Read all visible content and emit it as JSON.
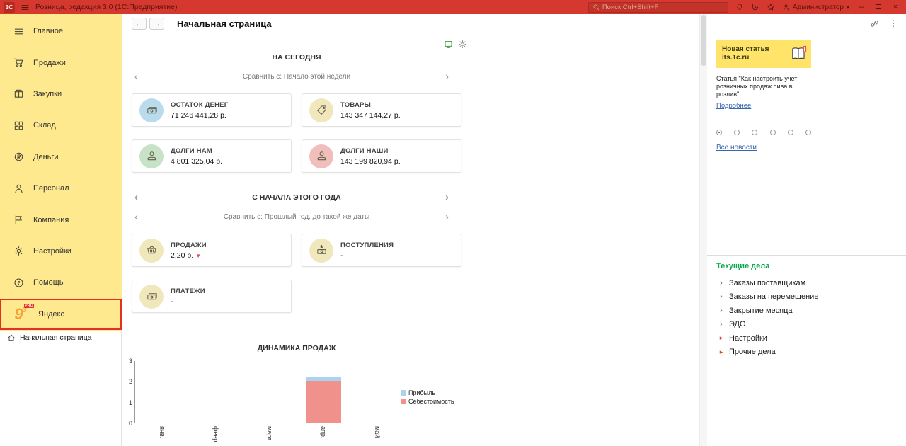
{
  "titlebar": {
    "logo": "1С",
    "title": "Розница, редакция 3.0  (1С:Предприятие)",
    "search_placeholder": "Поиск Ctrl+Shift+F",
    "user": "Администратор"
  },
  "sidebar": {
    "items": [
      {
        "id": "main",
        "label": "Главное",
        "icon": "menu"
      },
      {
        "id": "sales",
        "label": "Продажи",
        "icon": "cart"
      },
      {
        "id": "purchases",
        "label": "Закупки",
        "icon": "box"
      },
      {
        "id": "warehouse",
        "label": "Склад",
        "icon": "grid"
      },
      {
        "id": "money",
        "label": "Деньги",
        "icon": "coin"
      },
      {
        "id": "staff",
        "label": "Персонал",
        "icon": "person"
      },
      {
        "id": "company",
        "label": "Компания",
        "icon": "flag"
      },
      {
        "id": "settings",
        "label": "Настройки",
        "icon": "gear"
      },
      {
        "id": "help",
        "label": "Помощь",
        "icon": "help"
      },
      {
        "id": "yandex",
        "label": "Яндекс",
        "icon": "yandex-logo",
        "highlight": true,
        "logo_text": "9",
        "logo_sup": "3",
        "badge": "PRO"
      }
    ],
    "bottom_tab": "Начальная страница"
  },
  "main": {
    "page_title": "Начальная страница",
    "today": {
      "heading": "НА СЕГОДНЯ",
      "compare": "Сравнить с: Начало этой недели",
      "cards": [
        {
          "id": "cash-balance",
          "title": "ОСТАТОК ДЕНЕГ",
          "value": "71 246 441,28 р.",
          "icon": "money-stack",
          "icon_bg": "#b9dbeb"
        },
        {
          "id": "goods",
          "title": "ТОВАРЫ",
          "value": "143 347 144,27 р.",
          "icon": "price-tag",
          "icon_bg": "#f1e7bd"
        },
        {
          "id": "debts-to-us",
          "title": "ДОЛГИ НАМ",
          "value": "4 801 325,04 р.",
          "icon": "hand-coin",
          "icon_bg": "#c7e2c7"
        },
        {
          "id": "our-debts",
          "title": "ДОЛГИ НАШИ",
          "value": "143 199 820,94 р.",
          "icon": "hand-coin",
          "icon_bg": "#f0bfbc"
        }
      ]
    },
    "year": {
      "heading": "С НАЧАЛА ЭТОГО ГОДА",
      "compare": "Сравнить с: Прошлый год, до такой же даты",
      "cards": [
        {
          "id": "sales",
          "title": "ПРОДАЖИ",
          "value": "2,20 р.",
          "trend": "down",
          "icon": "basket",
          "icon_bg": "#f1e7bd"
        },
        {
          "id": "receipts",
          "title": "ПОСТУПЛЕНИЯ",
          "value": "-",
          "icon": "money-in",
          "icon_bg": "#f1e7bd"
        },
        {
          "id": "payments",
          "title": "ПЛАТЕЖИ",
          "value": "-",
          "icon": "money-stack",
          "icon_bg": "#f1e7bd"
        }
      ]
    }
  },
  "chart_data": {
    "type": "bar",
    "title": "ДИНАМИКА ПРОДАЖ",
    "categories": [
      "янв.",
      "февр.",
      "март",
      "апр.",
      "май"
    ],
    "series": [
      {
        "name": "Прибыль",
        "color": "#a9d3ef",
        "values": [
          0,
          0,
          0,
          0.2,
          0
        ]
      },
      {
        "name": "Себестоимость",
        "color": "#f0918b",
        "values": [
          0,
          0,
          0,
          2.0,
          0
        ]
      }
    ],
    "stacked": true,
    "ylim": [
      0,
      3
    ],
    "yticks": [
      0,
      1,
      2,
      3
    ],
    "grid": false,
    "legend_position": "right"
  },
  "right_panel": {
    "banner": {
      "title": "Новая статья",
      "site": "its.1c.ru"
    },
    "article_text": "Статья \"Как настроить учет розничных продаж пива в розлив\"",
    "more_link": "Подробнее",
    "news_dots": {
      "count": 6,
      "selected": 0
    },
    "all_news_link": "Все новости",
    "tasks": {
      "heading": "Текущие дела",
      "items": [
        {
          "id": "purchase-orders",
          "label": "Заказы поставщикам",
          "alert": false
        },
        {
          "id": "transfer-orders",
          "label": "Заказы на перемещение",
          "alert": false
        },
        {
          "id": "month-closing",
          "label": "Закрытие месяца",
          "alert": false
        },
        {
          "id": "edo",
          "label": "ЭДО",
          "alert": false
        },
        {
          "id": "settings",
          "label": "Настройки",
          "alert": true
        },
        {
          "id": "other",
          "label": "Прочие дела",
          "alert": true
        }
      ]
    }
  }
}
